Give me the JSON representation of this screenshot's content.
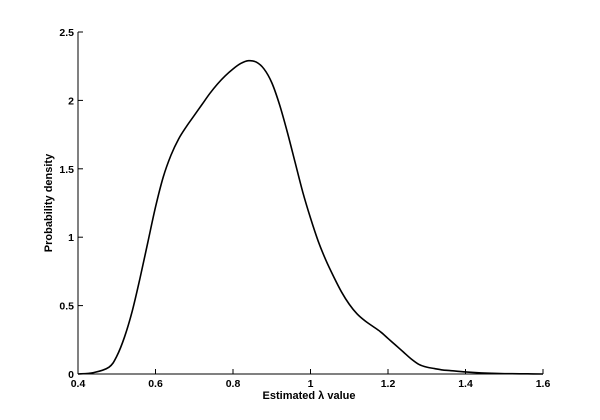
{
  "chart_data": {
    "type": "line",
    "title": "",
    "xlabel": "Estimated λ value",
    "ylabel": "Probability density",
    "xlim": [
      0.4,
      1.6
    ],
    "ylim": [
      0,
      2.5
    ],
    "grid": false,
    "xticks": [
      0.4,
      0.6,
      0.8,
      1,
      1.2,
      1.4,
      1.6
    ],
    "xtick_labels": [
      "0.4",
      "0.6",
      "0.8",
      "1",
      "1.2",
      "1.4",
      "1.6"
    ],
    "yticks": [
      0,
      0.5,
      1,
      1.5,
      2,
      2.5
    ],
    "ytick_labels": [
      "0",
      "0.5",
      "1",
      "1.5",
      "2",
      "2.5"
    ],
    "series": [
      {
        "color": "#000000",
        "x": [
          0.4,
          0.44,
          0.48,
          0.5,
          0.52,
          0.54,
          0.56,
          0.58,
          0.6,
          0.62,
          0.64,
          0.66,
          0.68,
          0.7,
          0.72,
          0.74,
          0.76,
          0.78,
          0.8,
          0.82,
          0.84,
          0.86,
          0.88,
          0.9,
          0.92,
          0.94,
          0.96,
          0.98,
          1.0,
          1.02,
          1.04,
          1.06,
          1.08,
          1.1,
          1.12,
          1.14,
          1.16,
          1.18,
          1.2,
          1.22,
          1.24,
          1.26,
          1.28,
          1.3,
          1.32,
          1.34,
          1.36,
          1.4,
          1.44,
          1.48,
          1.52,
          1.56,
          1.6
        ],
        "y": [
          0.0,
          0.01,
          0.05,
          0.13,
          0.27,
          0.46,
          0.7,
          0.96,
          1.22,
          1.44,
          1.6,
          1.72,
          1.81,
          1.89,
          1.97,
          2.05,
          2.12,
          2.18,
          2.23,
          2.27,
          2.29,
          2.28,
          2.23,
          2.13,
          1.97,
          1.77,
          1.55,
          1.33,
          1.14,
          0.97,
          0.83,
          0.71,
          0.6,
          0.51,
          0.44,
          0.39,
          0.35,
          0.31,
          0.26,
          0.21,
          0.16,
          0.11,
          0.07,
          0.05,
          0.04,
          0.03,
          0.025,
          0.015,
          0.008,
          0.004,
          0.002,
          0.001,
          0.0
        ]
      }
    ]
  }
}
